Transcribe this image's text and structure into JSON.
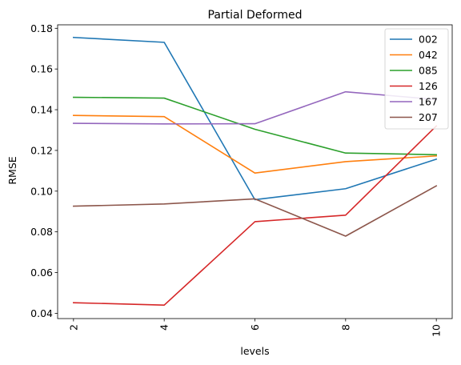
{
  "chart_data": {
    "type": "line",
    "title": "Partial Deformed",
    "xlabel": "levels",
    "ylabel": "RMSE",
    "x": [
      2,
      4,
      6,
      8,
      10
    ],
    "xticks": [
      "2",
      "4",
      "6",
      "8",
      "10"
    ],
    "xlim": [
      1.65,
      10.35
    ],
    "yticks": [
      "0.04",
      "0.06",
      "0.08",
      "0.10",
      "0.12",
      "0.14",
      "0.16",
      "0.18"
    ],
    "ytick_values": [
      0.04,
      0.06,
      0.08,
      0.1,
      0.12,
      0.14,
      0.16,
      0.18
    ],
    "ylim": [
      0.0374,
      0.1817
    ],
    "grid": false,
    "legend_position": "top-right",
    "series": [
      {
        "name": "002",
        "color": "#1f77b4",
        "values": [
          0.1755,
          0.1731,
          0.0958,
          0.1012,
          0.1157
        ]
      },
      {
        "name": "042",
        "color": "#ff7f0e",
        "values": [
          0.1372,
          0.1366,
          0.1089,
          0.1145,
          0.1173
        ]
      },
      {
        "name": "085",
        "color": "#2ca02c",
        "values": [
          0.1461,
          0.1457,
          0.1304,
          0.1187,
          0.1179
        ]
      },
      {
        "name": "126",
        "color": "#d62728",
        "values": [
          0.0452,
          0.044,
          0.085,
          0.0882,
          0.132
        ]
      },
      {
        "name": "167",
        "color": "#9467bd",
        "values": [
          0.1333,
          0.133,
          0.1331,
          0.1488,
          0.145
        ]
      },
      {
        "name": "207",
        "color": "#8c564b",
        "values": [
          0.0926,
          0.0937,
          0.0962,
          0.0779,
          0.1026
        ]
      }
    ]
  }
}
